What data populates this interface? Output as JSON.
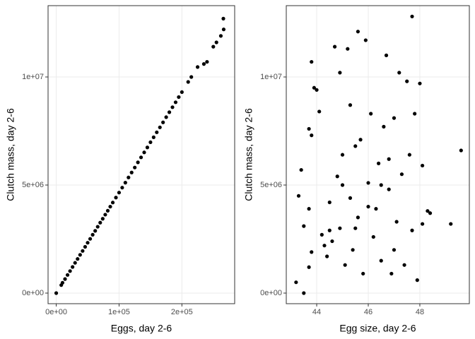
{
  "chart_data": [
    {
      "type": "scatter",
      "xlabel": "Eggs, day 2-6",
      "ylabel": "Clutch mass, day 2-6",
      "color": "#000000",
      "grid": true,
      "xlim": [
        -13000,
        284000
      ],
      "ylim": [
        -490000,
        13300000
      ],
      "xticks": [
        {
          "value": 0,
          "label": "0e+00"
        },
        {
          "value": 100000,
          "label": "1e+05"
        },
        {
          "value": 200000,
          "label": "2e+05"
        }
      ],
      "yticks": [
        {
          "value": 0,
          "label": "0e+00"
        },
        {
          "value": 5000000,
          "label": "5e+06"
        },
        {
          "value": 10000000,
          "label": "1e+07"
        }
      ],
      "x": [
        0,
        8000,
        10000,
        14000,
        18000,
        22000,
        26000,
        30000,
        34000,
        38000,
        42000,
        46000,
        50000,
        54000,
        58000,
        62000,
        66000,
        70000,
        74000,
        78000,
        82000,
        86000,
        90000,
        95000,
        100000,
        105000,
        110000,
        115000,
        120000,
        125000,
        130000,
        135000,
        140000,
        145000,
        150000,
        155000,
        160000,
        165000,
        170000,
        175000,
        180000,
        185000,
        190000,
        195000,
        200000,
        210000,
        215000,
        225000,
        235000,
        240000,
        250000,
        255000,
        262000,
        266000,
        266500
      ],
      "values": [
        0,
        370000,
        480000,
        650000,
        840000,
        1020000,
        1210000,
        1400000,
        1580000,
        1770000,
        1950000,
        2140000,
        2330000,
        2510000,
        2700000,
        2880000,
        3070000,
        3260000,
        3440000,
        3630000,
        3810000,
        4000000,
        4190000,
        4420000,
        4650000,
        4880000,
        5110000,
        5350000,
        5580000,
        5810000,
        6050000,
        6280000,
        6510000,
        6740000,
        6980000,
        7210000,
        7440000,
        7670000,
        7900000,
        8140000,
        8370000,
        8600000,
        8830000,
        9070000,
        9300000,
        9770000,
        10000000,
        10460000,
        10600000,
        10700000,
        11400000,
        11600000,
        11900000,
        12700000,
        12200000
      ]
    },
    {
      "type": "scatter",
      "xlabel": "Egg size, day 2-6",
      "ylabel": "Clutch mass, day 2-6",
      "color": "#000000",
      "grid": true,
      "xlim": [
        42.82,
        49.92
      ],
      "ylim": [
        -490000,
        13300000
      ],
      "xticks": [
        44,
        46,
        48
      ],
      "yticks": [
        {
          "value": 0,
          "label": "0e+00"
        },
        {
          "value": 5000000,
          "label": "5e+06"
        },
        {
          "value": 10000000,
          "label": "1e+07"
        }
      ],
      "x": [
        43.2,
        43.5,
        43.4,
        43.3,
        43.5,
        43.7,
        43.8,
        43.8,
        43.9,
        44.0,
        43.7,
        43.8,
        43.7,
        44.1,
        44.2,
        44.3,
        44.4,
        44.5,
        44.6,
        44.7,
        44.8,
        44.9,
        44.9,
        45.0,
        45.1,
        45.2,
        45.3,
        45.3,
        45.4,
        45.5,
        45.6,
        45.6,
        45.7,
        45.8,
        45.9,
        46.0,
        46.1,
        46.2,
        46.3,
        46.4,
        46.5,
        46.6,
        46.7,
        46.8,
        46.9,
        47.0,
        47.1,
        47.2,
        47.3,
        47.4,
        47.5,
        47.6,
        47.7,
        47.7,
        47.8,
        47.9,
        48.0,
        48.1,
        48.1,
        48.3,
        48.4,
        49.2,
        49.6,
        46.0,
        45.5,
        46.5,
        47.0,
        44.5,
        45.0,
        46.8
      ],
      "values": [
        500000,
        0,
        5700000,
        4500000,
        3100000,
        7600000,
        7300000,
        10700000,
        9500000,
        9400000,
        1200000,
        1900000,
        3900000,
        8400000,
        2700000,
        2200000,
        1700000,
        4200000,
        2400000,
        11400000,
        5400000,
        10200000,
        3000000,
        6400000,
        1300000,
        11300000,
        8700000,
        4400000,
        2000000,
        6800000,
        12100000,
        3500000,
        7100000,
        900000,
        11700000,
        5100000,
        8300000,
        2600000,
        3900000,
        6000000,
        1500000,
        7700000,
        11000000,
        4800000,
        900000,
        8100000,
        3300000,
        10200000,
        5500000,
        1300000,
        9800000,
        6400000,
        12800000,
        2900000,
        8300000,
        600000,
        9700000,
        5900000,
        3200000,
        3800000,
        3700000,
        3200000,
        6600000,
        4000000,
        3000000,
        5000000,
        2000000,
        2900000,
        5000000,
        6200000
      ]
    }
  ]
}
